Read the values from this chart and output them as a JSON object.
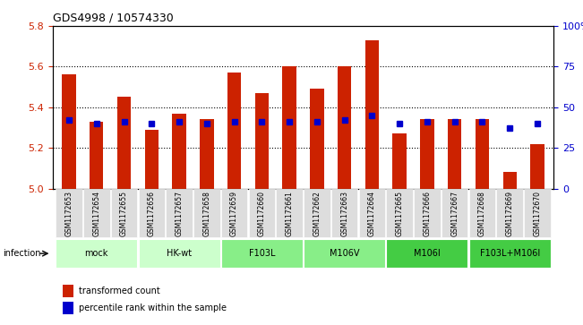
{
  "title": "GDS4998 / 10574330",
  "samples": [
    "GSM1172653",
    "GSM1172654",
    "GSM1172655",
    "GSM1172656",
    "GSM1172657",
    "GSM1172658",
    "GSM1172659",
    "GSM1172660",
    "GSM1172661",
    "GSM1172662",
    "GSM1172663",
    "GSM1172664",
    "GSM1172665",
    "GSM1172666",
    "GSM1172667",
    "GSM1172668",
    "GSM1172669",
    "GSM1172670"
  ],
  "transformed_count": [
    5.56,
    5.33,
    5.45,
    5.29,
    5.37,
    5.34,
    5.57,
    5.47,
    5.6,
    5.49,
    5.6,
    5.73,
    5.27,
    5.34,
    5.34,
    5.34,
    5.08,
    5.22
  ],
  "percentile_rank": [
    42,
    40,
    41,
    40,
    41,
    40,
    41,
    41,
    41,
    41,
    42,
    45,
    40,
    41,
    41,
    41,
    37,
    40
  ],
  "ylim_left": [
    5.0,
    5.8
  ],
  "ylim_right": [
    0,
    100
  ],
  "yticks_left": [
    5.0,
    5.2,
    5.4,
    5.6,
    5.8
  ],
  "yticks_right": [
    0,
    25,
    50,
    75,
    100
  ],
  "bar_color": "#cc2200",
  "dot_color": "#0000cc",
  "groups": [
    {
      "label": "mock",
      "start": 0,
      "end": 2,
      "color": "#ccffcc"
    },
    {
      "label": "HK-wt",
      "start": 3,
      "end": 5,
      "color": "#ccffcc"
    },
    {
      "label": "F103L",
      "start": 6,
      "end": 8,
      "color": "#88ee88"
    },
    {
      "label": "M106V",
      "start": 9,
      "end": 11,
      "color": "#88ee88"
    },
    {
      "label": "M106I",
      "start": 12,
      "end": 14,
      "color": "#44cc44"
    },
    {
      "label": "F103L+M106I",
      "start": 15,
      "end": 17,
      "color": "#44cc44"
    }
  ],
  "infection_label": "infection",
  "legend_items": [
    {
      "color": "#cc2200",
      "label": "transformed count"
    },
    {
      "color": "#0000cc",
      "label": "percentile rank within the sample"
    }
  ],
  "left_tick_color": "#cc2200",
  "right_tick_color": "#0000cc"
}
